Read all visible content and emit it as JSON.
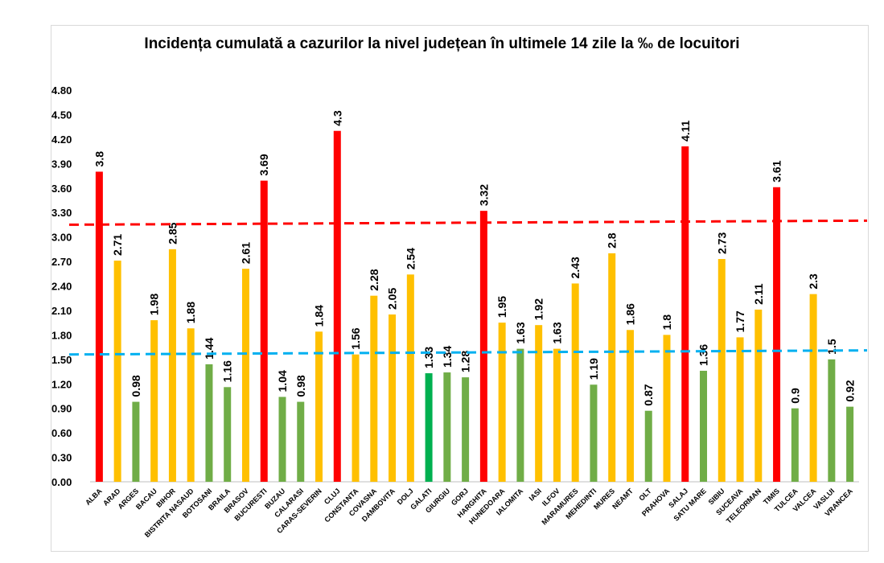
{
  "chart_data": {
    "type": "bar",
    "title": "Incidența cumulată a cazurilor la nivel județean în ultimele 14 zile la ‰ de locuitori",
    "xlabel": "",
    "ylabel": "",
    "ylim": [
      0,
      4.8
    ],
    "yticks": [
      "0.00",
      "0.30",
      "0.60",
      "0.90",
      "1.20",
      "1.50",
      "1.80",
      "2.10",
      "2.40",
      "2.70",
      "3.00",
      "3.30",
      "3.60",
      "3.90",
      "4.20",
      "4.50",
      "4.80"
    ],
    "grid": false,
    "legend": "none",
    "categories": [
      "ALBA",
      "ARAD",
      "ARGES",
      "BACAU",
      "BIHOR",
      "BISTRITA NASAUD",
      "BOTOSANI",
      "BRAILA",
      "BRASOV",
      "BUCURESTI",
      "BUZAU",
      "CALARASI",
      "CARAS-SEVERIN",
      "CLUJ",
      "CONSTANTA",
      "COVASNA",
      "DAMBOVITA",
      "DOLJ",
      "GALATI",
      "GIURGIU",
      "GORJ",
      "HARGHITA",
      "HUNEDOARA",
      "IALOMITA",
      "IASI",
      "ILFOV",
      "MARAMURES",
      "MEHEDINTI",
      "MURES",
      "NEAMT",
      "OLT",
      "PRAHOVA",
      "SALAJ",
      "SATU MARE",
      "SIBIU",
      "SUCEAVA",
      "TELEORMAN",
      "TIMIS",
      "TULCEA",
      "VALCEA",
      "VASLUI",
      "VRANCEA"
    ],
    "values": [
      3.8,
      2.71,
      0.98,
      1.98,
      2.85,
      1.88,
      1.44,
      1.16,
      2.61,
      3.69,
      1.04,
      0.98,
      1.84,
      4.3,
      1.56,
      2.28,
      2.05,
      2.54,
      1.33,
      1.34,
      1.28,
      3.32,
      1.95,
      1.63,
      1.92,
      1.63,
      2.43,
      1.19,
      2.8,
      1.86,
      0.87,
      1.8,
      4.11,
      1.36,
      2.73,
      1.77,
      2.11,
      3.61,
      0.9,
      2.3,
      1.5,
      0.92
    ],
    "data_labels": [
      "3.8",
      "2.71",
      "0.98",
      "1.98",
      "2.85",
      "1.88",
      "1.44",
      "1.16",
      "2.61",
      "3.69",
      "1.04",
      "0.98",
      "1.84",
      "4.3",
      "1.56",
      "2.28",
      "2.05",
      "2.54",
      "1.33",
      "1.34",
      "1.28",
      "3.32",
      "1.95",
      "1.63",
      "1.92",
      "1.63",
      "2.43",
      "1.19",
      "2.8",
      "1.86",
      "0.87",
      "1.8",
      "4.11",
      "1.36",
      "2.73",
      "1.77",
      "2.11",
      "3.61",
      "0.9",
      "2.3",
      "1.5",
      "0.92"
    ],
    "bar_colors": [
      "#ff0000",
      "#ffc000",
      "#70ad47",
      "#ffc000",
      "#ffc000",
      "#ffc000",
      "#70ad47",
      "#70ad47",
      "#ffc000",
      "#ff0000",
      "#70ad47",
      "#70ad47",
      "#ffc000",
      "#ff0000",
      "#ffc000",
      "#ffc000",
      "#ffc000",
      "#ffc000",
      "#00b050",
      "#70ad47",
      "#70ad47",
      "#ff0000",
      "#ffc000",
      "#70ad47",
      "#ffc000",
      "#ffc000",
      "#ffc000",
      "#70ad47",
      "#ffc000",
      "#ffc000",
      "#70ad47",
      "#ffc000",
      "#ff0000",
      "#70ad47",
      "#ffc000",
      "#ffc000",
      "#ffc000",
      "#ff0000",
      "#70ad47",
      "#ffc000",
      "#70ad47",
      "#70ad47"
    ],
    "reference_lines": [
      {
        "color": "#ff0000",
        "y_start": 3.15,
        "y_end": 3.2,
        "style": "dashed"
      },
      {
        "color": "#00b0f0",
        "y_start": 1.56,
        "y_end": 1.61,
        "style": "dashed"
      }
    ]
  }
}
